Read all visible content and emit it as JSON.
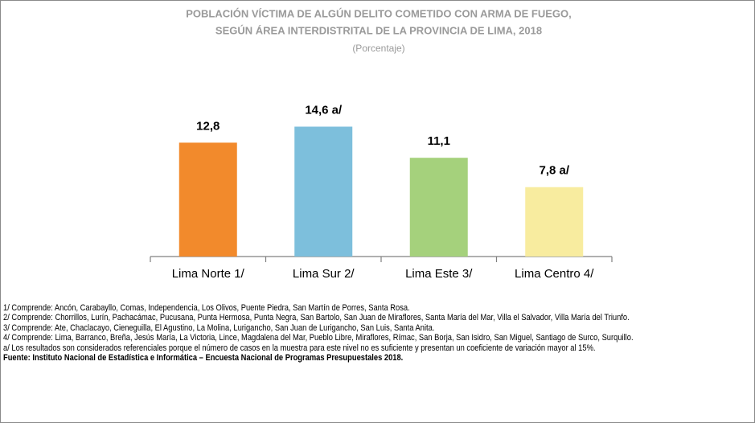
{
  "chart_data": {
    "type": "bar",
    "title": [
      "POBLACIÓN VÍCTIMA DE ALGÚN DELITO COMETIDO CON ARMA DE FUEGO,",
      "SEGÚN ÁREA INTERDISTRITAL DE LA PROVINCIA DE LIMA, 2018"
    ],
    "subtitle": "(Porcentaje)",
    "categories": [
      "Lima Norte 1/",
      "Lima Sur 2/",
      "Lima Este 3/",
      "Lima Centro 4/"
    ],
    "values": [
      12.8,
      14.6,
      11.1,
      7.8
    ],
    "value_labels": [
      "12,8",
      "14,6 a/",
      "11,1",
      "7,8 a/"
    ],
    "colors": [
      "#f28a2c",
      "#7dbfdc",
      "#a5d17c",
      "#f8ec9f"
    ],
    "ylim": [
      0,
      16
    ]
  },
  "footnotes": [
    "1/ Comprende: Ancón, Carabayllo, Comas, Independencia, Los Olivos, Puente Piedra, San Martín de Porres, Santa Rosa.",
    "2/ Comprende: Chorrillos, Lurín, Pachacámac, Pucusana, Punta Hermosa, Punta Negra, San Bartolo, San Juan de Miraflores, Santa María del Mar, Villa el Salvador, Villa María del Triunfo.",
    "3/ Comprende: Ate, Chaclacayo, Cieneguilla, El Agustino, La Molina, Lurigancho, San Juan de Lurigancho, San Luis, Santa Anita.",
    "4/ Comprende: Lima, Barranco, Breña, Jesús María, La Victoria, Lince, Magdalena del Mar, Pueblo Libre, Miraflores, Rímac, San Borja, San Isidro, San Miguel, Santiago de Surco, Surquillo.",
    "a/ Los resultados son considerados referenciales porque el número de casos en la muestra para este nivel no es suficiente y presentan un coeficiente de variación mayor al 15%."
  ],
  "source": "Fuente: Instituto Nacional de Estadística e Informática – Encuesta Nacional de Programas Presupuestales 2018."
}
